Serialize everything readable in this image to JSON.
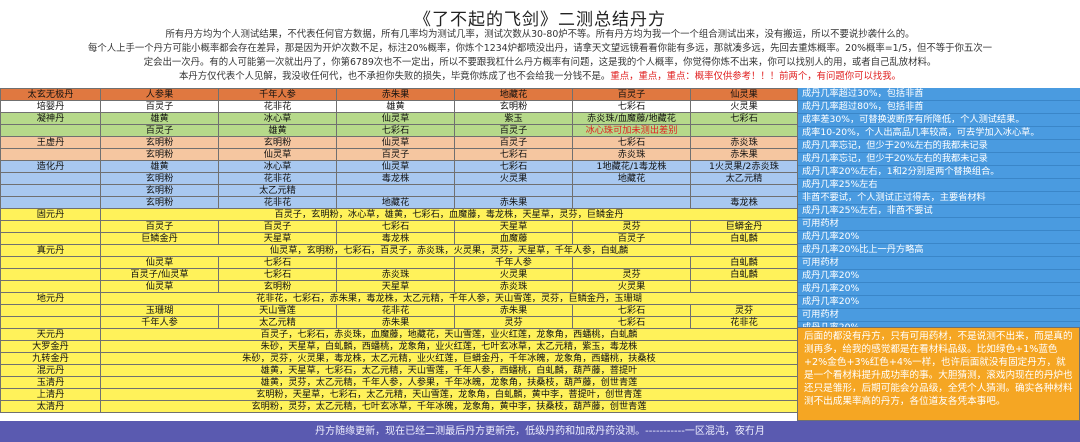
{
  "header": {
    "title": "《了不起的飞剑》二测总结丹方",
    "line1": "所有丹方均为个人测试结果，不代表任何官方数据，所有几率均为测试几率，测试次数从30-80炉不等。所有丹方均为我一个一个组合测试出来，没有搬运，所以不要说抄袭什么的。",
    "line2": "每个人上手一个丹方可能小概率都会存在差异，那是因为开炉次数不足，标注20%概率，你炼个1234炉都喷没出丹，请拿天文望远镜看看你能有多远，那就凑多远，先回去重炼概率。20%概率=1/5，但不等于你五次一",
    "line3": "定会出一次丹。有的人可能第一次就出丹了，你第6789次也不一定出，所以不要跟我杠什么丹方概率有问题，这是我的个人概率，你觉得你炼不出来，你可以找别人的用，或者自己乱放材料。",
    "line4a": "本丹方仅代表个人见解，我没收任何代，也不承担你失败的损失，毕竟你炼成了也不会给我一分钱不是。",
    "line4b": "重点，重点，重点：概率仅供参考！！！前两个，有问题你可以找我。"
  },
  "table": {
    "rows": [
      {
        "name": "太玄无极丹",
        "c": [
          "人参果",
          "千年人参",
          "赤朱果",
          "地藏花",
          "百灵子",
          "仙灵果"
        ],
        "bg": "#e07840"
      },
      {
        "name": "培婴丹",
        "c": [
          "百灵子",
          "花非花",
          "雄黄",
          "玄明粉",
          "七彩石",
          "火灵果"
        ],
        "bg": "#ffffff"
      },
      {
        "name": "凝神丹",
        "c": [
          "雄黄",
          "冰心草",
          "仙灵草",
          "紫玉",
          "赤炎珠/血魔藤/地藏花",
          "七彩石"
        ],
        "bg": "#b6d98a"
      },
      {
        "name": "",
        "c": [
          "百灵子",
          "雄黄",
          "七彩石",
          "百灵子",
          "冰心珠可加未测出差别",
          ""
        ],
        "bg": "#b6d98a"
      },
      {
        "name": "王虚丹",
        "c": [
          "玄明粉",
          "玄明粉",
          "仙灵草",
          "百灵子",
          "七彩石",
          "赤炎珠"
        ],
        "bg": "#f5c6a0"
      },
      {
        "name": "",
        "c": [
          "玄明粉",
          "仙灵草",
          "百灵子",
          "七彩石",
          "赤炎珠",
          "赤朱果"
        ],
        "bg": "#f5c6a0"
      },
      {
        "name": "造化丹",
        "c": [
          "雄黄",
          "冰心草",
          "仙灵草",
          "七彩石",
          "1地藏花/1毒龙株",
          "1火灵果/2赤炎珠"
        ],
        "bg": "#a8c8f0"
      },
      {
        "name": "",
        "c": [
          "玄明粉",
          "花非花",
          "毒龙株",
          "火灵果",
          "地藏花",
          "太乙元精"
        ],
        "bg": "#a8c8f0"
      },
      {
        "name": "",
        "c": [
          "玄明粉",
          "太乙元精",
          "",
          "",
          "",
          ""
        ],
        "bg": "#a8c8f0"
      },
      {
        "name": "",
        "c": [
          "玄明粉",
          "花非花",
          "地藏花",
          "赤朱果",
          "",
          "毒龙株"
        ],
        "bg": "#a8c8f0"
      },
      {
        "name": "固元丹",
        "span": "百灵子，玄明粉，冰心草，雄黄，七彩石，血魔藤，毒龙株，天星草，灵芬，巨鳞金丹",
        "bg": "#fff25a"
      },
      {
        "name": "",
        "c": [
          "百灵子",
          "百灵子",
          "七彩石",
          "天星草",
          "灵芬",
          "巨蟒金丹"
        ],
        "bg": "#fff25a"
      },
      {
        "name": "",
        "c": [
          "巨鳞金丹",
          "天星草",
          "毒龙株",
          "血魔藤",
          "百灵子",
          "白虬麟"
        ],
        "bg": "#fff25a"
      },
      {
        "name": "真元丹",
        "span": "仙灵草，玄明粉，七彩石，百灵子，赤炎珠，火灵果，灵芬，天星草，千年人参，白虬麟",
        "bg": "#fff25a"
      },
      {
        "name": "",
        "c": [
          "仙灵草",
          "七彩石",
          "",
          "千年人参",
          "",
          "白虬麟"
        ],
        "bg": "#fff25a"
      },
      {
        "name": "",
        "c": [
          "百灵子/仙灵草",
          "七彩石",
          "赤炎珠",
          "火灵果",
          "灵芬",
          "白虬麟"
        ],
        "bg": "#fff25a"
      },
      {
        "name": "",
        "c": [
          "仙灵草",
          "玄明粉",
          "天星草",
          "赤炎珠",
          "火灵果",
          ""
        ],
        "bg": "#fff25a"
      },
      {
        "name": "地元丹",
        "span": "花非花，七彩石，赤朱果，毒龙株，太乙元精，千年人参，天山雪莲，灵芬，巨鳞金丹，玉珊瑚",
        "bg": "#fff25a"
      },
      {
        "name": "",
        "c": [
          "玉珊瑚",
          "天山雪莲",
          "花非花",
          "赤朱果",
          "七彩石",
          "灵芬"
        ],
        "bg": "#fff25a"
      },
      {
        "name": "",
        "c": [
          "千年人参",
          "太乙元精",
          "赤朱果",
          "灵芬",
          "七彩石",
          "花非花"
        ],
        "bg": "#fff25a"
      },
      {
        "name": "天元丹",
        "span": "百灵子，七彩石，赤炎珠，血魔藤，地藏花，天山雪莲，业火红莲，龙象角，西蟠桃，白虬麟",
        "bg": "#fff25a"
      },
      {
        "name": "大罗金丹",
        "span": "朱砂，天星草，白虬麟，西蟠桃，龙象角，业火红莲，七叶玄冰草，太乙元精，紫玉，毒龙株",
        "bg": "#fff25a"
      },
      {
        "name": "九转金丹",
        "span": "朱砂，灵芬，火灵果，毒龙株，太乙元精，业火红莲，巨蟒金丹，千年冰魄，龙象角，西蟠桃，扶桑枝",
        "bg": "#fff25a"
      },
      {
        "name": "混元丹",
        "span": "雄黄，天星草，七彩石，太乙元精，天山雪莲，千年人参，西蟠桃，白虬麟，葫芦藤，菩提叶",
        "bg": "#fff25a"
      },
      {
        "name": "玉清丹",
        "span": "雄黄，灵芬，太乙元精，千年人参，人参果，千年冰魄，龙象角，扶桑枝，葫芦藤，创世青莲",
        "bg": "#fff25a"
      },
      {
        "name": "上清丹",
        "span": "玄明粉，天星草，七彩石，太乙元精，天山雪莲，龙象角，白虬麟，黄中李，菩提叶，创世青莲",
        "bg": "#fff25a"
      },
      {
        "name": "太清丹",
        "span": "玄明粉，灵芬，太乙元精，七叶玄冰草，千年冰魄，龙象角，黄中李，扶桑枝，葫芦藤，创世青莲",
        "bg": "#fff25a"
      }
    ]
  },
  "right_notes": [
    {
      "text": "成丹几率超过30%，包括非酋",
      "bg": "#4a9be0"
    },
    {
      "text": "成丹几率超过80%，包括非酋",
      "bg": "#4a9be0"
    },
    {
      "text": "成率差30%，可替换波断序有所降低，个人测试结果。",
      "bg": "#4a9be0"
    },
    {
      "text": "成率10-20%，个人出高品几率较高，可去学加入冰心草。",
      "bg": "#4a9be0"
    },
    {
      "text": "成丹几率忘记，但少于20%左右的我都未记录",
      "bg": "#4a9be0"
    },
    {
      "text": "成丹几率忘记，但少于20%左右的我都未记录",
      "bg": "#4a9be0"
    },
    {
      "text": "成丹几率20%左右，1和2分别是两个替换组合。",
      "bg": "#4a9be0"
    },
    {
      "text": "成丹几率25%左右",
      "bg": "#4a9be0"
    },
    {
      "text": "非酋不要试，个人测试正过得去，主要省材料",
      "bg": "#4a9be0"
    },
    {
      "text": "成丹几率25%左右，非酋不要试",
      "bg": "#4a9be0"
    },
    {
      "text": "可用药材",
      "bg": "#4a9be0"
    },
    {
      "text": "成丹几率20%",
      "bg": "#4a9be0"
    },
    {
      "text": "成丹几率20%比上一丹方略高",
      "bg": "#4a9be0"
    },
    {
      "text": "可用药材",
      "bg": "#4a9be0"
    },
    {
      "text": "成丹几率20%",
      "bg": "#4a9be0"
    },
    {
      "text": "成丹几率20%",
      "bg": "#4a9be0"
    },
    {
      "text": "成丹几率20%",
      "bg": "#4a9be0"
    },
    {
      "text": "可用药材",
      "bg": "#4a9be0"
    },
    {
      "text": "成丹几率20%",
      "bg": "#4a9be0"
    },
    {
      "text": "成丹几率25%左右，金色药材可任意组合，说不定更适合你",
      "bg": "#4a9be0"
    }
  ],
  "big_note": "后面的都没有丹方，只有可用药材，不是说测不出来，而是真的测再多，给我的感觉都是在看材料品级。比如绿色+1%蓝色+2%金色+3%红色+4%一样，也许后面就没有固定丹方，就是一个看材料提升成功率的事。大胆猜测，滚戏内现在的丹炉也还只是雏形，后期可能会分品级，全凭个人猜测。确实各种材料测不出成果率高的丹方，各位道友各凭本事吧。",
  "footer": "丹方随缘更新，现在已经二测最后丹方更新完，低级丹药和加成丹药没测。-----------一区混沌，夜冇月"
}
